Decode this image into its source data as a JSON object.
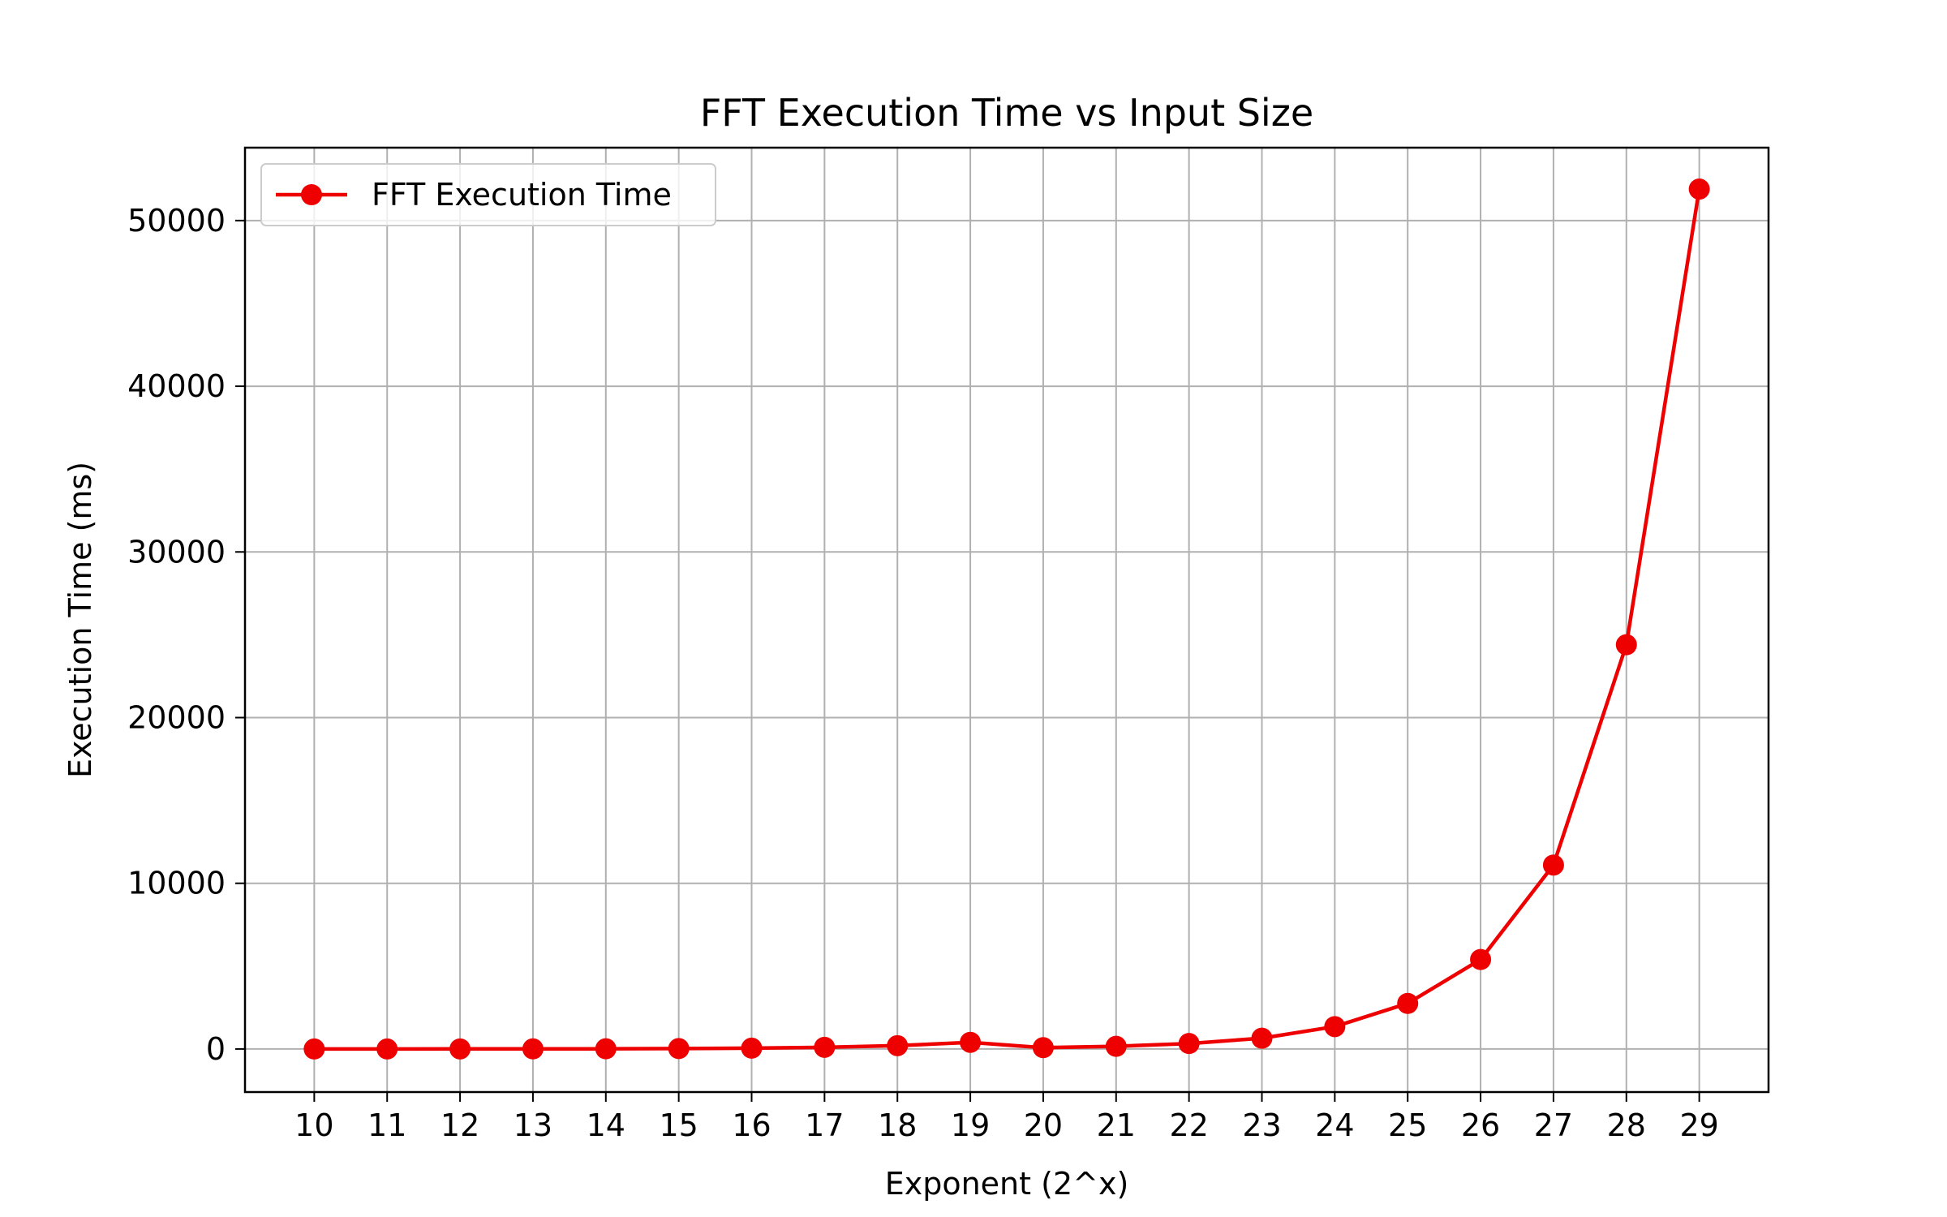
{
  "chart_data": {
    "type": "line",
    "title": "FFT Execution Time vs Input Size",
    "xlabel": "Exponent (2^x)",
    "ylabel": "Execution Time (ms)",
    "x": [
      10,
      11,
      12,
      13,
      14,
      15,
      16,
      17,
      18,
      19,
      20,
      21,
      22,
      23,
      24,
      25,
      26,
      27,
      28,
      29
    ],
    "x_tick_labels": [
      "10",
      "11",
      "12",
      "13",
      "14",
      "15",
      "16",
      "17",
      "18",
      "19",
      "20",
      "21",
      "22",
      "23",
      "24",
      "25",
      "26",
      "27",
      "28",
      "29"
    ],
    "y_ticks": [
      0,
      10000,
      20000,
      30000,
      40000,
      50000
    ],
    "y_tick_labels": [
      "0",
      "10000",
      "20000",
      "30000",
      "40000",
      "50000"
    ],
    "xlim": [
      9.05,
      29.95
    ],
    "ylim": [
      -2600,
      54400
    ],
    "grid": true,
    "legend_position": "top-left",
    "series": [
      {
        "name": "FFT Execution Time",
        "color": "#ee0000",
        "marker": "circle",
        "values": [
          0.5,
          1,
          3,
          6,
          12,
          25,
          50,
          100,
          200,
          400,
          80,
          160,
          330,
          650,
          1350,
          2750,
          5400,
          11100,
          24400,
          51900
        ]
      }
    ]
  }
}
